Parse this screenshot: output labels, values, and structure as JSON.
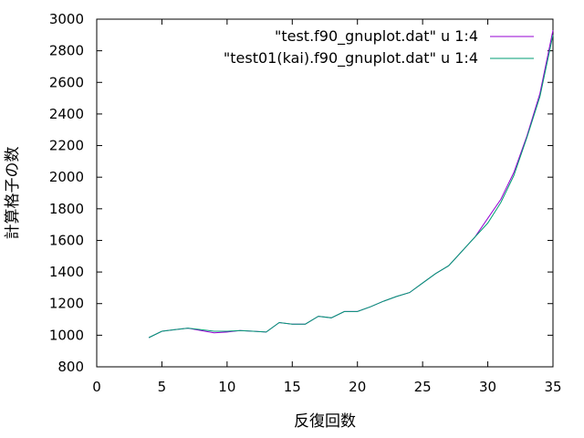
{
  "chart_data": {
    "type": "line",
    "xlabel": "反復回数",
    "ylabel": "計算格子の数",
    "xlim": [
      0,
      35
    ],
    "ylim": [
      800,
      3000
    ],
    "xticks": [
      0,
      5,
      10,
      15,
      20,
      25,
      30,
      35
    ],
    "yticks": [
      800,
      1000,
      1200,
      1400,
      1600,
      1800,
      2000,
      2200,
      2400,
      2600,
      2800,
      3000
    ],
    "grid": false,
    "legend_position": "top-right",
    "series": [
      {
        "name": "\"test.f90_gnuplot.dat\" u 1:4",
        "color": "#9400d3",
        "x": [
          4,
          5,
          6,
          7,
          8,
          9,
          10,
          11,
          12,
          13,
          14,
          15,
          16,
          17,
          18,
          19,
          20,
          21,
          22,
          23,
          24,
          25,
          26,
          27,
          28,
          29,
          30,
          31,
          32,
          33,
          34,
          35
        ],
        "y": [
          985,
          1025,
          1035,
          1045,
          1030,
          1015,
          1020,
          1030,
          1025,
          1020,
          1080,
          1070,
          1070,
          1120,
          1110,
          1150,
          1150,
          1180,
          1215,
          1245,
          1270,
          1330,
          1390,
          1440,
          1530,
          1620,
          1740,
          1860,
          2030,
          2260,
          2530,
          2930
        ]
      },
      {
        "name": "\"test01(kai).f90_gnuplot.dat\" u 1:4",
        "color": "#009e73",
        "x": [
          4,
          5,
          6,
          7,
          8,
          9,
          10,
          11,
          12,
          13,
          14,
          15,
          16,
          17,
          18,
          19,
          20,
          21,
          22,
          23,
          24,
          25,
          26,
          27,
          28,
          29,
          30,
          31,
          32,
          33,
          34,
          35
        ],
        "y": [
          985,
          1025,
          1035,
          1045,
          1035,
          1025,
          1025,
          1030,
          1025,
          1020,
          1080,
          1070,
          1070,
          1120,
          1110,
          1150,
          1150,
          1180,
          1215,
          1245,
          1270,
          1330,
          1390,
          1440,
          1530,
          1620,
          1710,
          1840,
          2010,
          2250,
          2510,
          2900
        ]
      }
    ]
  }
}
